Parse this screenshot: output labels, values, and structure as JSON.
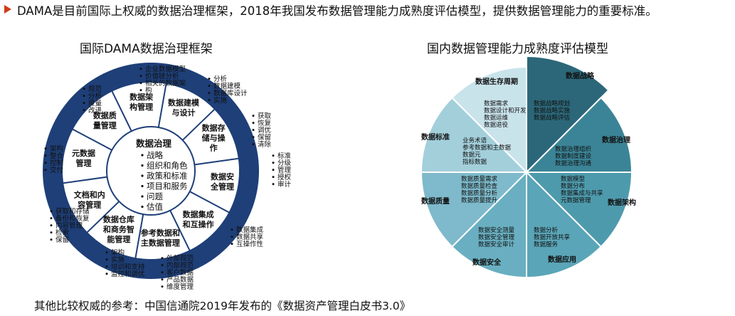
{
  "headline": "DAMA是目前国际上权威的数据治理框架，2018年我国发布数据管理能力成熟度评估模型，提供数据管理能力的重要标准。",
  "footer": "其他比较权威的参考：中国信通院2019年发布的《数据资产管理白皮书3.0》",
  "dama": {
    "title": "国际DAMA数据治理框架",
    "center_title": "数据治理",
    "center_items": [
      "战略",
      "组织和角色",
      "政策和标准",
      "项目和服务",
      "问题",
      "估值"
    ],
    "sectors": [
      {
        "name": [
          "数据架",
          "构管理"
        ],
        "items": [
          "企业数据模型",
          "价值链分析",
          "相关的数据架",
          "构"
        ]
      },
      {
        "name": [
          "数据建模",
          "与设计"
        ],
        "items": [
          "分析",
          "数据建模",
          "数据库设计",
          "实施"
        ]
      },
      {
        "name": [
          "数据存",
          "储与操",
          "作"
        ],
        "items": [
          "获取",
          "恢复",
          "调优",
          "保留",
          "清除"
        ]
      },
      {
        "name": [
          "数据安",
          "全管理"
        ],
        "items": [
          "标准",
          "分级",
          "管理",
          "授权",
          "审计"
        ]
      },
      {
        "name": [
          "数据集成",
          "和互操作"
        ],
        "items": [
          "数据集成",
          "数据共享",
          "互操作性"
        ]
      },
      {
        "name": [
          "参考数据和",
          "主数据管理"
        ],
        "items": [
          "外部规范",
          "内部规范",
          "客户数据",
          "产品数据",
          "维度管理"
        ]
      },
      {
        "name": [
          "数据仓库",
          "和商务智",
          "能管理"
        ],
        "items": [
          "架构",
          "实施",
          "培训和支持",
          "监控和调优"
        ]
      },
      {
        "name": [
          "文档和内",
          "容管理"
        ],
        "items": [
          "获取和存储",
          "备份和恢复",
          "内容管理",
          "检索",
          "保留"
        ]
      },
      {
        "name": [
          "元数据",
          "管理"
        ],
        "items": [
          "架构",
          "整合",
          "控制",
          "交付"
        ]
      },
      {
        "name": [
          "数据质",
          "量管理"
        ],
        "items": [
          "规范",
          "分析",
          "度量",
          "改进"
        ]
      }
    ]
  },
  "dcmm": {
    "title": "国内数据管理能力成熟度评估模型",
    "sectors": [
      {
        "name": "数据战略",
        "items": [
          "数据战略规划",
          "数据战略实施",
          "数据战略评估"
        ],
        "color": "#2c6779"
      },
      {
        "name": "数据治理",
        "items": [
          "数据治理组织",
          "数据制度建设",
          "数据治理沟通"
        ],
        "color": "#3b8497"
      },
      {
        "name": "数据架构",
        "items": [
          "数据模型",
          "数据分布",
          "数据集成与共享",
          "元数据管理"
        ],
        "color": "#4e9aad"
      },
      {
        "name": "数据应用",
        "items": [
          "数据分析",
          "数据开放共享",
          "数据服务"
        ],
        "color": "#5aa5b7"
      },
      {
        "name": "数据安全",
        "items": [
          "数据安全测量",
          "数据安全管理",
          "数据安全审计"
        ],
        "color": "#69afc1"
      },
      {
        "name": "数据质量",
        "items": [
          "数据质量需求",
          "数据质量检查",
          "数据质量分析",
          "数据质量提升"
        ],
        "color": "#7ebacb"
      },
      {
        "name": "数据标准",
        "items": [
          "业务术语",
          "参考数据和主数据",
          "数据元",
          "指标数据"
        ],
        "color": "#a3cfdb"
      },
      {
        "name": "数据生存周期",
        "items": [
          "数据需求",
          "数据设计和开发",
          "数据运维",
          "数据退役"
        ],
        "color": "#c9e3eb"
      }
    ]
  }
}
